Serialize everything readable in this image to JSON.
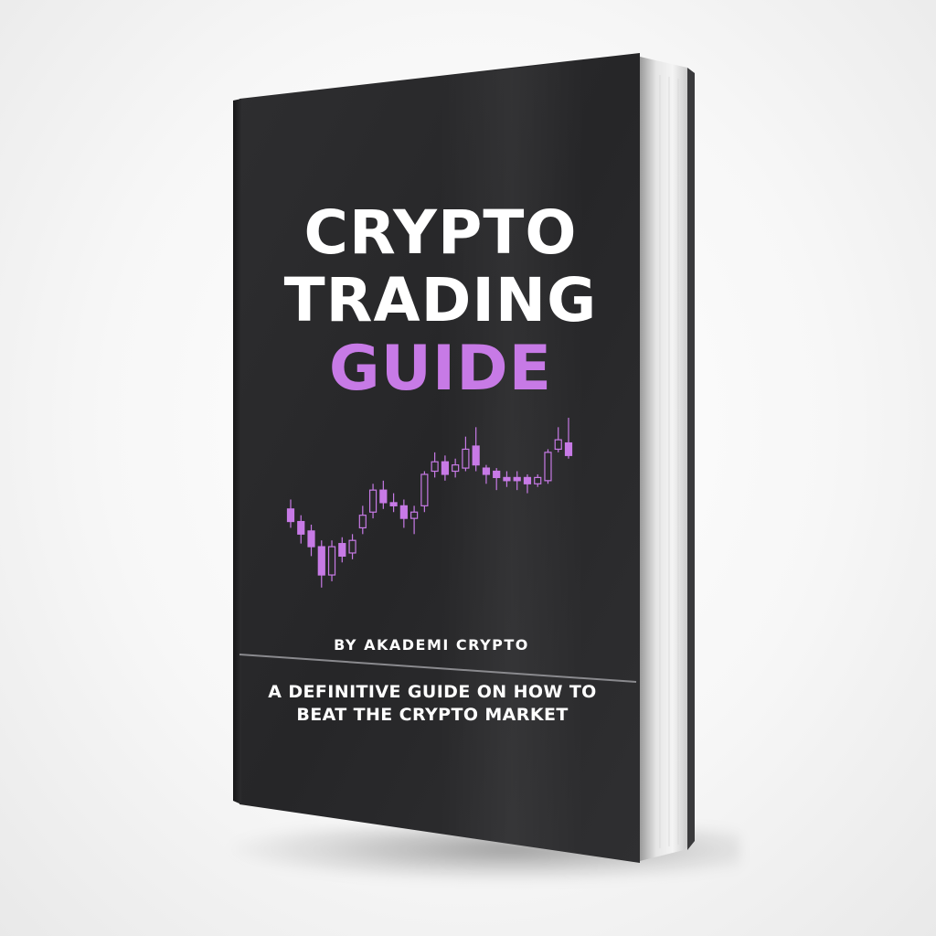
{
  "book": {
    "title_line1": "CRYPTO",
    "title_line2": "TRADING",
    "title_line3": "GUIDE",
    "author": "BY AKADEMI CRYPTO",
    "subtitle_line1": "A DEFINITIVE GUIDE ON HOW TO",
    "subtitle_line2": "BEAT THE CRYPTO MARKET",
    "colors": {
      "cover": "#2a2a2c",
      "title": "#ffffff",
      "accent": "#c77ae6",
      "candle": "#c77ae6",
      "divider": "#8a8a8e",
      "background": "#f5f5f5"
    }
  },
  "candlestick_chart": {
    "candles": [
      {
        "open": 60,
        "close": 52,
        "high": 66,
        "low": 48
      },
      {
        "open": 52,
        "close": 44,
        "high": 56,
        "low": 38
      },
      {
        "open": 46,
        "close": 36,
        "high": 50,
        "low": 30
      },
      {
        "open": 36,
        "close": 18,
        "high": 40,
        "low": 10
      },
      {
        "open": 18,
        "close": 36,
        "high": 40,
        "low": 14
      },
      {
        "open": 38,
        "close": 30,
        "high": 42,
        "low": 26
      },
      {
        "open": 32,
        "close": 40,
        "high": 44,
        "low": 28
      },
      {
        "open": 48,
        "close": 56,
        "high": 62,
        "low": 44
      },
      {
        "open": 58,
        "close": 72,
        "high": 76,
        "low": 54
      },
      {
        "open": 72,
        "close": 64,
        "high": 78,
        "low": 60
      },
      {
        "open": 64,
        "close": 62,
        "high": 70,
        "low": 58
      },
      {
        "open": 62,
        "close": 54,
        "high": 66,
        "low": 48
      },
      {
        "open": 54,
        "close": 58,
        "high": 62,
        "low": 44
      },
      {
        "open": 62,
        "close": 82,
        "high": 84,
        "low": 58
      },
      {
        "open": 84,
        "close": 90,
        "high": 96,
        "low": 80
      },
      {
        "open": 90,
        "close": 82,
        "high": 94,
        "low": 78
      },
      {
        "open": 84,
        "close": 88,
        "high": 92,
        "low": 80
      },
      {
        "open": 86,
        "close": 98,
        "high": 106,
        "low": 84
      },
      {
        "open": 100,
        "close": 88,
        "high": 112,
        "low": 84
      },
      {
        "open": 86,
        "close": 82,
        "high": 88,
        "low": 76
      },
      {
        "open": 84,
        "close": 80,
        "high": 86,
        "low": 72
      },
      {
        "open": 80,
        "close": 78,
        "high": 84,
        "low": 74
      },
      {
        "open": 80,
        "close": 78,
        "high": 84,
        "low": 72
      },
      {
        "open": 80,
        "close": 76,
        "high": 82,
        "low": 70
      },
      {
        "open": 76,
        "close": 80,
        "high": 82,
        "low": 74
      },
      {
        "open": 78,
        "close": 96,
        "high": 98,
        "low": 76
      },
      {
        "open": 98,
        "close": 104,
        "high": 112,
        "low": 96
      },
      {
        "open": 102,
        "close": 94,
        "high": 118,
        "low": 92
      }
    ]
  }
}
